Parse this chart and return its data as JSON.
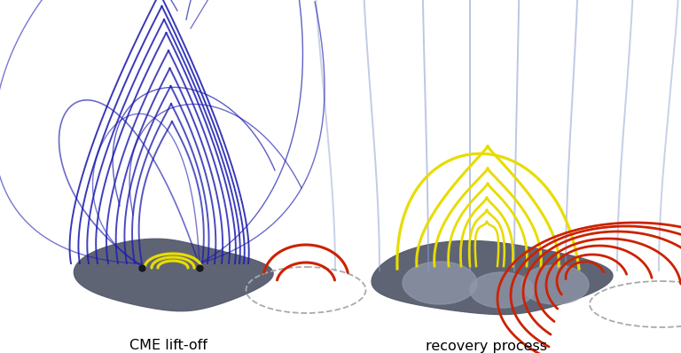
{
  "bg_color": "#ffffff",
  "dark_blob_color": "#565c6e",
  "light_blob_color": "#9098aa",
  "dark_blue": "#1c1cb0",
  "light_blue": "#8899cc",
  "yellow": "#e8dc00",
  "red": "#cc2200",
  "dashed_gray": "#aaaaaa",
  "label_left": "CME lift-off",
  "label_right": "recovery process",
  "label_fontsize": 11.5
}
